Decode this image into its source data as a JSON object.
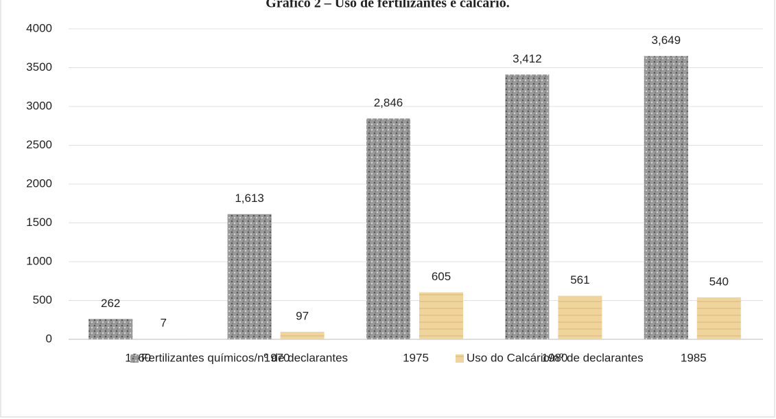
{
  "chart_data": {
    "type": "bar",
    "title": "Gráfico 2 – Uso de fertilizantes e calcário.",
    "categories": [
      "1960",
      "1970",
      "1975",
      "1980",
      "1985"
    ],
    "series": [
      {
        "name": "Fertilizantes químicos/nº de declarantes",
        "color": "#9a9a9a",
        "values": [
          262,
          1613,
          2846,
          3412,
          3649
        ],
        "value_labels": [
          "262",
          "1,613",
          "2,846",
          "3,412",
          "3,649"
        ]
      },
      {
        "name": "Uso do Calcário/nº de declarantes",
        "color": "#efd59c",
        "values": [
          7,
          97,
          605,
          561,
          540
        ]
      }
    ],
    "ylim": [
      0,
      4000
    ],
    "yticks": [
      0,
      500,
      1000,
      1500,
      2000,
      2500,
      3000,
      3500,
      4000
    ],
    "grid": true,
    "legend": "bottom"
  }
}
